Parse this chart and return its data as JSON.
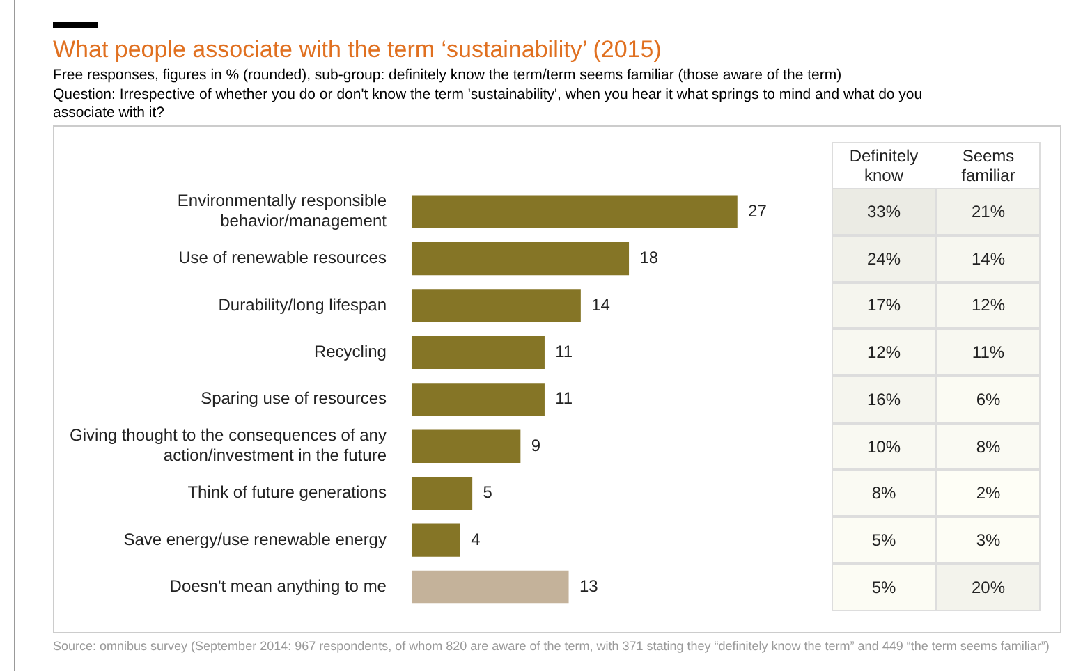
{
  "chart_data": [
    {
      "type": "bar",
      "orientation": "horizontal",
      "title": "What people associate with the term ‘sustainability’ (2015)",
      "subtitle": "Free responses, figures in % (rounded), sub-group: definitely know the term/term seems familiar (those aware of the term)",
      "annotations": [
        "Question: Irrespective of whether you do or don't know the term 'sustainability', when you hear it what springs to mind and what do you associate with it?",
        "Source: omnibus survey (September 2014: 967 respondents, of whom 820 are aware of the term, with 371 stating they “definitely know the term” and 449 “the term seems familiar”)"
      ],
      "categories": [
        "Environmentally responsible behavior/management",
        "Use of renewable resources",
        "Durability/long lifespan",
        "Recycling",
        "Sparing use of resources",
        "Giving thought to the consequences of any action/investment in the future",
        "Think of future generations",
        "Save energy/use renewable energy",
        "Doesn't mean anything to me"
      ],
      "values": [
        27,
        18,
        14,
        11,
        11,
        9,
        5,
        4,
        13
      ],
      "colors": [
        "#857526",
        "#857526",
        "#857526",
        "#857526",
        "#857526",
        "#857526",
        "#857526",
        "#857526",
        "#c4b29a"
      ],
      "data_labels": true
    },
    {
      "type": "heatmap",
      "categories": [
        "Definitely know",
        "Seems familiar"
      ],
      "y_categories": [
        null,
        null,
        null,
        null,
        null,
        null,
        null,
        null,
        null
      ],
      "cells": [
        [
          33,
          21
        ],
        [
          24,
          14
        ],
        [
          17,
          12
        ],
        [
          12,
          11
        ],
        [
          16,
          6
        ],
        [
          10,
          8
        ],
        [
          8,
          2
        ],
        [
          5,
          3
        ],
        [
          5,
          20
        ]
      ],
      "cell_labels": [
        [
          "33%",
          "21%"
        ],
        [
          "24%",
          "14%"
        ],
        [
          "17%",
          "12%"
        ],
        [
          "12%",
          "11%"
        ],
        [
          "16%",
          "6%"
        ],
        [
          "10%",
          "8%"
        ],
        [
          "8%",
          "2%"
        ],
        [
          "5%",
          "3%"
        ],
        [
          "5%",
          "20%"
        ]
      ]
    }
  ]
}
